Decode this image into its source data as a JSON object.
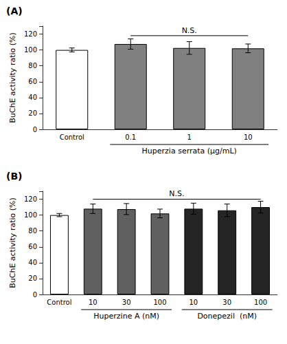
{
  "chart_data": [
    {
      "type": "bar",
      "title": "(A)",
      "categories": [
        "Control",
        "0.1",
        "1",
        "10"
      ],
      "values": [
        100,
        107.5,
        102.5,
        102.0
      ],
      "errors": [
        2.5,
        6.5,
        8.0,
        5.5
      ],
      "colors": [
        "#ffffff",
        "#808080",
        "#808080",
        "#808080"
      ],
      "ylabel": "BuChE activity ratio (%)",
      "ylim": [
        0,
        130
      ],
      "yticks": [
        0,
        20,
        40,
        60,
        80,
        100,
        120
      ],
      "grid": false,
      "annotations": [
        {
          "text": "N.S.",
          "y": 120,
          "line_y": 118,
          "start": 1,
          "end": 3
        }
      ],
      "groups": [
        {
          "label": "Huperzia serrata (μg/mL)",
          "start": 1,
          "end": 3
        }
      ]
    },
    {
      "type": "bar",
      "title": "(B)",
      "categories": [
        "Control",
        "10",
        "30",
        "100",
        "10",
        "30",
        "100"
      ],
      "values": [
        100,
        108.0,
        107.5,
        102.0,
        108.0,
        106.0,
        110.0
      ],
      "errors": [
        2.0,
        6.0,
        7.0,
        5.5,
        7.0,
        8.0,
        7.5
      ],
      "colors": [
        "#ffffff",
        "#606060",
        "#606060",
        "#606060",
        "#252525",
        "#252525",
        "#252525"
      ],
      "ylabel": "BuChE activity ratio (%)",
      "ylim": [
        0,
        130
      ],
      "yticks": [
        0,
        20,
        40,
        60,
        80,
        100,
        120
      ],
      "grid": false,
      "annotations": [
        {
          "text": "N.S.",
          "y": 122,
          "line_y": 120,
          "start": 1,
          "end": 6
        }
      ],
      "groups": [
        {
          "label": "Huperzine A (nM)",
          "start": 1,
          "end": 3
        },
        {
          "label": "Donepezil  (nM)",
          "start": 4,
          "end": 6
        }
      ]
    }
  ]
}
